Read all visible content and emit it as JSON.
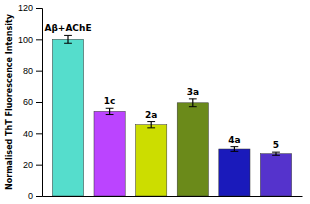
{
  "chart_data": {
    "type": "bar",
    "categories": [
      "Aβ+AChE",
      "1c",
      "2a",
      "3a",
      "4a",
      "5"
    ],
    "values": [
      100,
      54,
      45.5,
      59.5,
      30,
      27
    ],
    "errors": [
      2.5,
      2.0,
      2.0,
      2.5,
      1.5,
      1.0
    ],
    "colors": [
      "#55DDCC",
      "#BB44FF",
      "#CCDD00",
      "#6B8A1A",
      "#1A1ABB",
      "#5533CC"
    ],
    "ylabel": "Normalised ThT Fluorescence Intensity",
    "ylim": [
      0,
      120
    ],
    "yticks": [
      0,
      20,
      40,
      60,
      80,
      100,
      120
    ],
    "tick_labels": "y"
  }
}
